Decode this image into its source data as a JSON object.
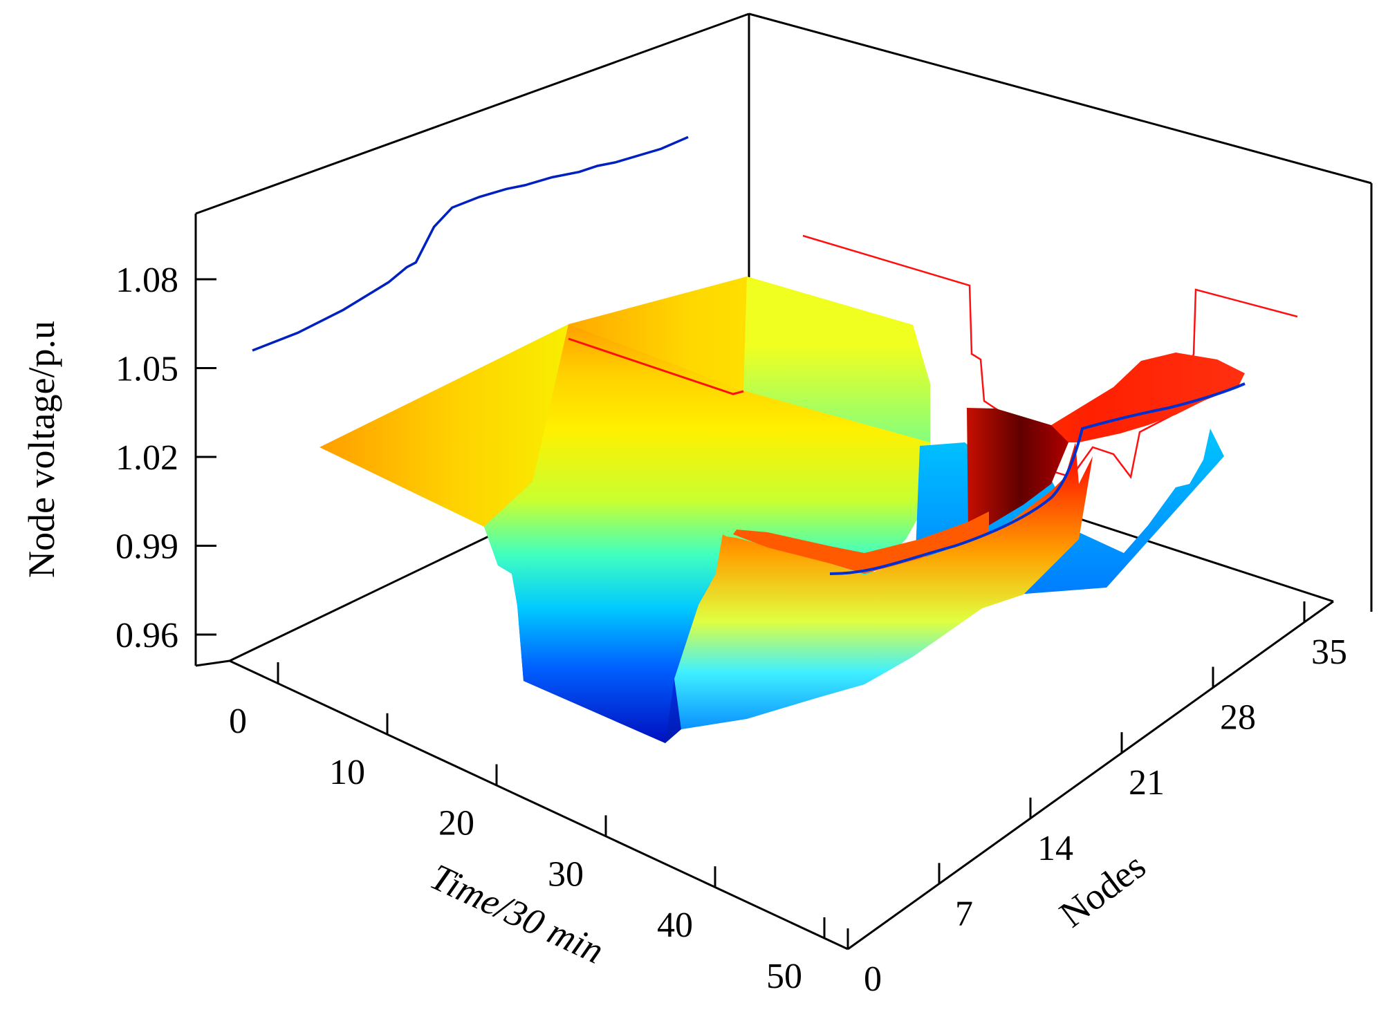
{
  "chart_data": {
    "type": "surface3d",
    "title": "",
    "xlabel": "Time/30 min",
    "ylabel": "Nodes",
    "zlabel": "Node voltage/p.u",
    "x_ticks": [
      "0",
      "10",
      "20",
      "30",
      "40",
      "50"
    ],
    "y_ticks": [
      "0",
      "7",
      "14",
      "21",
      "28",
      "35"
    ],
    "z_ticks": [
      "0.96",
      "0.99",
      "1.02",
      "1.05",
      "1.08"
    ],
    "xlim": [
      0,
      48
    ],
    "ylim": [
      1,
      33
    ],
    "zlim": [
      0.95,
      1.095
    ],
    "colormap": [
      "#00008f",
      "#0050ff",
      "#00e0ff",
      "#80ff80",
      "#ffff00",
      "#ff9000",
      "#ff2000",
      "#800000"
    ],
    "surface_summary": {
      "voltage_at_node1": 1.05,
      "min_voltage_night": 0.955,
      "max_voltage_day": 1.085,
      "evening_min_voltage": 0.985
    },
    "series": [
      {
        "color": "#0020c0",
        "projection": "node-plane",
        "x": [
          0,
          5,
          10,
          15,
          17,
          18,
          20,
          22,
          25,
          28,
          30,
          33,
          36,
          38,
          40,
          45,
          48
        ],
        "z": [
          1.056,
          1.058,
          1.062,
          1.068,
          1.072,
          1.073,
          1.085,
          1.091,
          1.093,
          1.094,
          1.094,
          1.095,
          1.095,
          1.096,
          1.096,
          1.098,
          1.101
        ]
      },
      {
        "color": "#ff1010",
        "projection": "time-plane",
        "y": [
          1,
          7,
          9,
          11,
          13,
          15,
          17,
          19,
          21,
          23,
          24,
          26,
          28,
          30,
          33
        ],
        "z": [
          1.08,
          1.067,
          1.052,
          1.045,
          1.035,
          1.027,
          1.015,
          1.012,
          1.01,
          1.012,
          1.022,
          1.03,
          1.04,
          1.045,
          1.05
        ]
      }
    ]
  }
}
